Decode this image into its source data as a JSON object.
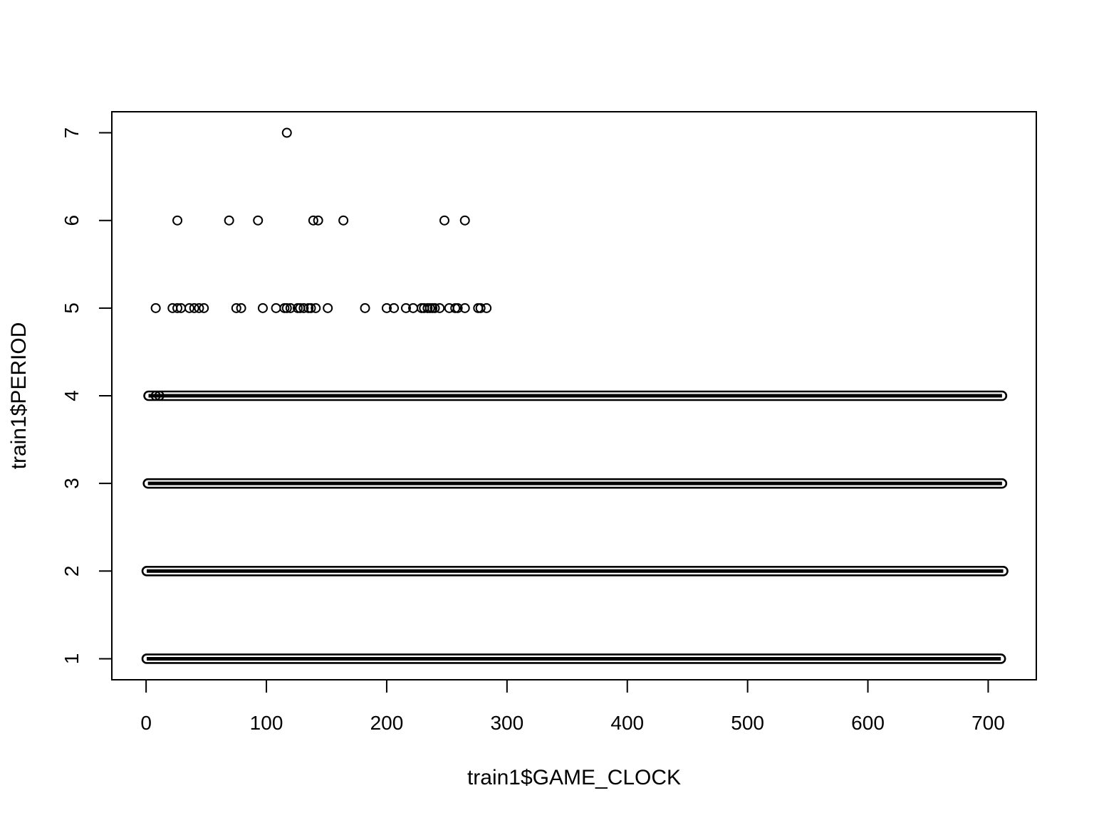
{
  "chart_data": {
    "type": "scatter",
    "title": "",
    "xlabel": "train1$GAME_CLOCK",
    "ylabel": "train1$PERIOD",
    "xlim": [
      -28.5,
      740
    ],
    "ylim": [
      0.76,
      7.24
    ],
    "x_ticks": [
      0,
      100,
      200,
      300,
      400,
      500,
      600,
      700
    ],
    "y_ticks": [
      1,
      2,
      3,
      4,
      5,
      6,
      7
    ],
    "marker": "open-circle",
    "marker_color": "#000000",
    "grid": false,
    "legend": "none",
    "dense_bands": [
      {
        "y": 1,
        "x_start": 0.5,
        "x_end": 710.5
      },
      {
        "y": 2,
        "x_start": 0.5,
        "x_end": 712.5
      },
      {
        "y": 3,
        "x_start": 1.5,
        "x_end": 711.5
      },
      {
        "y": 4,
        "x_start": 2,
        "x_end": 711.5
      }
    ],
    "sparse_points": [
      {
        "x": 8,
        "y": 4
      },
      {
        "x": 11,
        "y": 4
      },
      {
        "x": 117,
        "y": 7
      },
      {
        "x": 26,
        "y": 6
      },
      {
        "x": 69,
        "y": 6
      },
      {
        "x": 93,
        "y": 6
      },
      {
        "x": 139,
        "y": 6
      },
      {
        "x": 143,
        "y": 6
      },
      {
        "x": 164,
        "y": 6
      },
      {
        "x": 248,
        "y": 6
      },
      {
        "x": 265,
        "y": 6
      },
      {
        "x": 8,
        "y": 5
      },
      {
        "x": 22,
        "y": 5
      },
      {
        "x": 26,
        "y": 5
      },
      {
        "x": 29,
        "y": 5
      },
      {
        "x": 36,
        "y": 5
      },
      {
        "x": 40,
        "y": 5
      },
      {
        "x": 44,
        "y": 5
      },
      {
        "x": 48,
        "y": 5
      },
      {
        "x": 75,
        "y": 5
      },
      {
        "x": 79,
        "y": 5
      },
      {
        "x": 97,
        "y": 5
      },
      {
        "x": 108,
        "y": 5
      },
      {
        "x": 115,
        "y": 5
      },
      {
        "x": 117,
        "y": 5
      },
      {
        "x": 120,
        "y": 5
      },
      {
        "x": 126,
        "y": 5
      },
      {
        "x": 128,
        "y": 5
      },
      {
        "x": 131,
        "y": 5
      },
      {
        "x": 135,
        "y": 5
      },
      {
        "x": 137,
        "y": 5
      },
      {
        "x": 141,
        "y": 5
      },
      {
        "x": 151,
        "y": 5
      },
      {
        "x": 182,
        "y": 5
      },
      {
        "x": 200,
        "y": 5
      },
      {
        "x": 206,
        "y": 5
      },
      {
        "x": 216,
        "y": 5
      },
      {
        "x": 222,
        "y": 5
      },
      {
        "x": 229,
        "y": 5
      },
      {
        "x": 231,
        "y": 5
      },
      {
        "x": 234,
        "y": 5
      },
      {
        "x": 236,
        "y": 5
      },
      {
        "x": 238,
        "y": 5
      },
      {
        "x": 240,
        "y": 5
      },
      {
        "x": 244,
        "y": 5
      },
      {
        "x": 252,
        "y": 5
      },
      {
        "x": 257,
        "y": 5
      },
      {
        "x": 259,
        "y": 5
      },
      {
        "x": 265,
        "y": 5
      },
      {
        "x": 276,
        "y": 5
      },
      {
        "x": 278,
        "y": 5
      },
      {
        "x": 283,
        "y": 5
      }
    ]
  }
}
